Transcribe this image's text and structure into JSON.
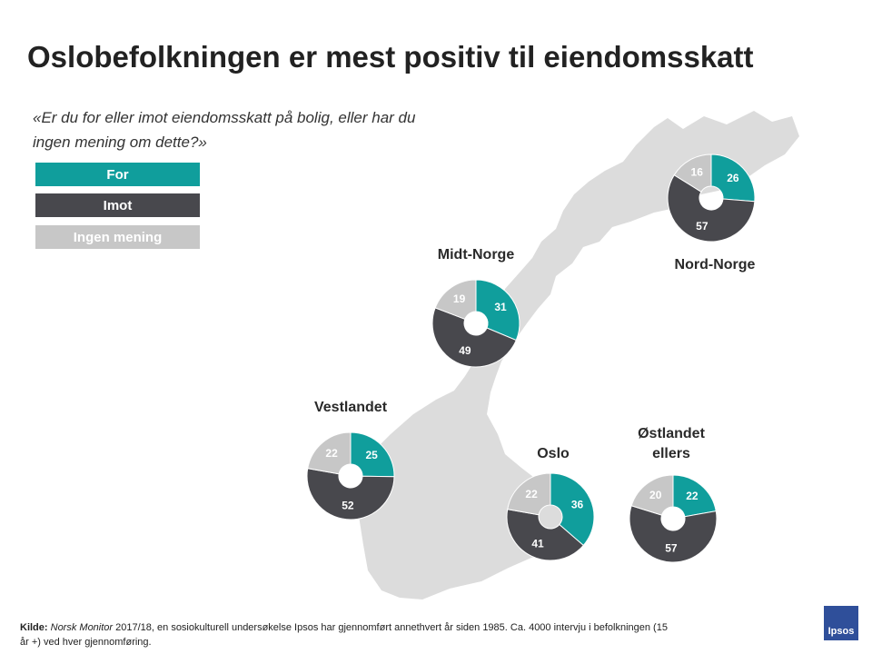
{
  "title": "Oslobefolkningen er mest positiv til eiendomsskatt",
  "question": "«Er du for eller imot eiendomsskatt på bolig, eller har du ingen mening om dette?»",
  "legend": [
    {
      "label": "For",
      "color": "#109e9c"
    },
    {
      "label": "Imot",
      "color": "#48484d"
    },
    {
      "label": "Ingen mening",
      "color": "#c7c7c7"
    }
  ],
  "chart_data": {
    "type": "pie",
    "categories": [
      "For",
      "Imot",
      "Ingen mening"
    ],
    "colors": [
      "#109e9c",
      "#48484d",
      "#c7c7c7"
    ],
    "regions": [
      {
        "name": "Nord-Norge",
        "values": [
          26,
          57,
          16
        ]
      },
      {
        "name": "Midt-Norge",
        "values": [
          31,
          49,
          19
        ]
      },
      {
        "name": "Vestlandet",
        "values": [
          25,
          52,
          22
        ]
      },
      {
        "name": "Oslo",
        "values": [
          36,
          41,
          22
        ]
      },
      {
        "name": "Østlandet\nellers",
        "values": [
          22,
          57,
          20
        ]
      }
    ]
  },
  "footer": {
    "kilde": "Kilde:",
    "source_name": "Norsk Monitor",
    "text": " 2017/18, en sosiokulturell undersøkelse Ipsos har gjennomført annethvert år siden 1985. Ca. 4000 intervju i befolkningen (15 år +) ved hver gjennomføring."
  },
  "logo": "Ipsos"
}
